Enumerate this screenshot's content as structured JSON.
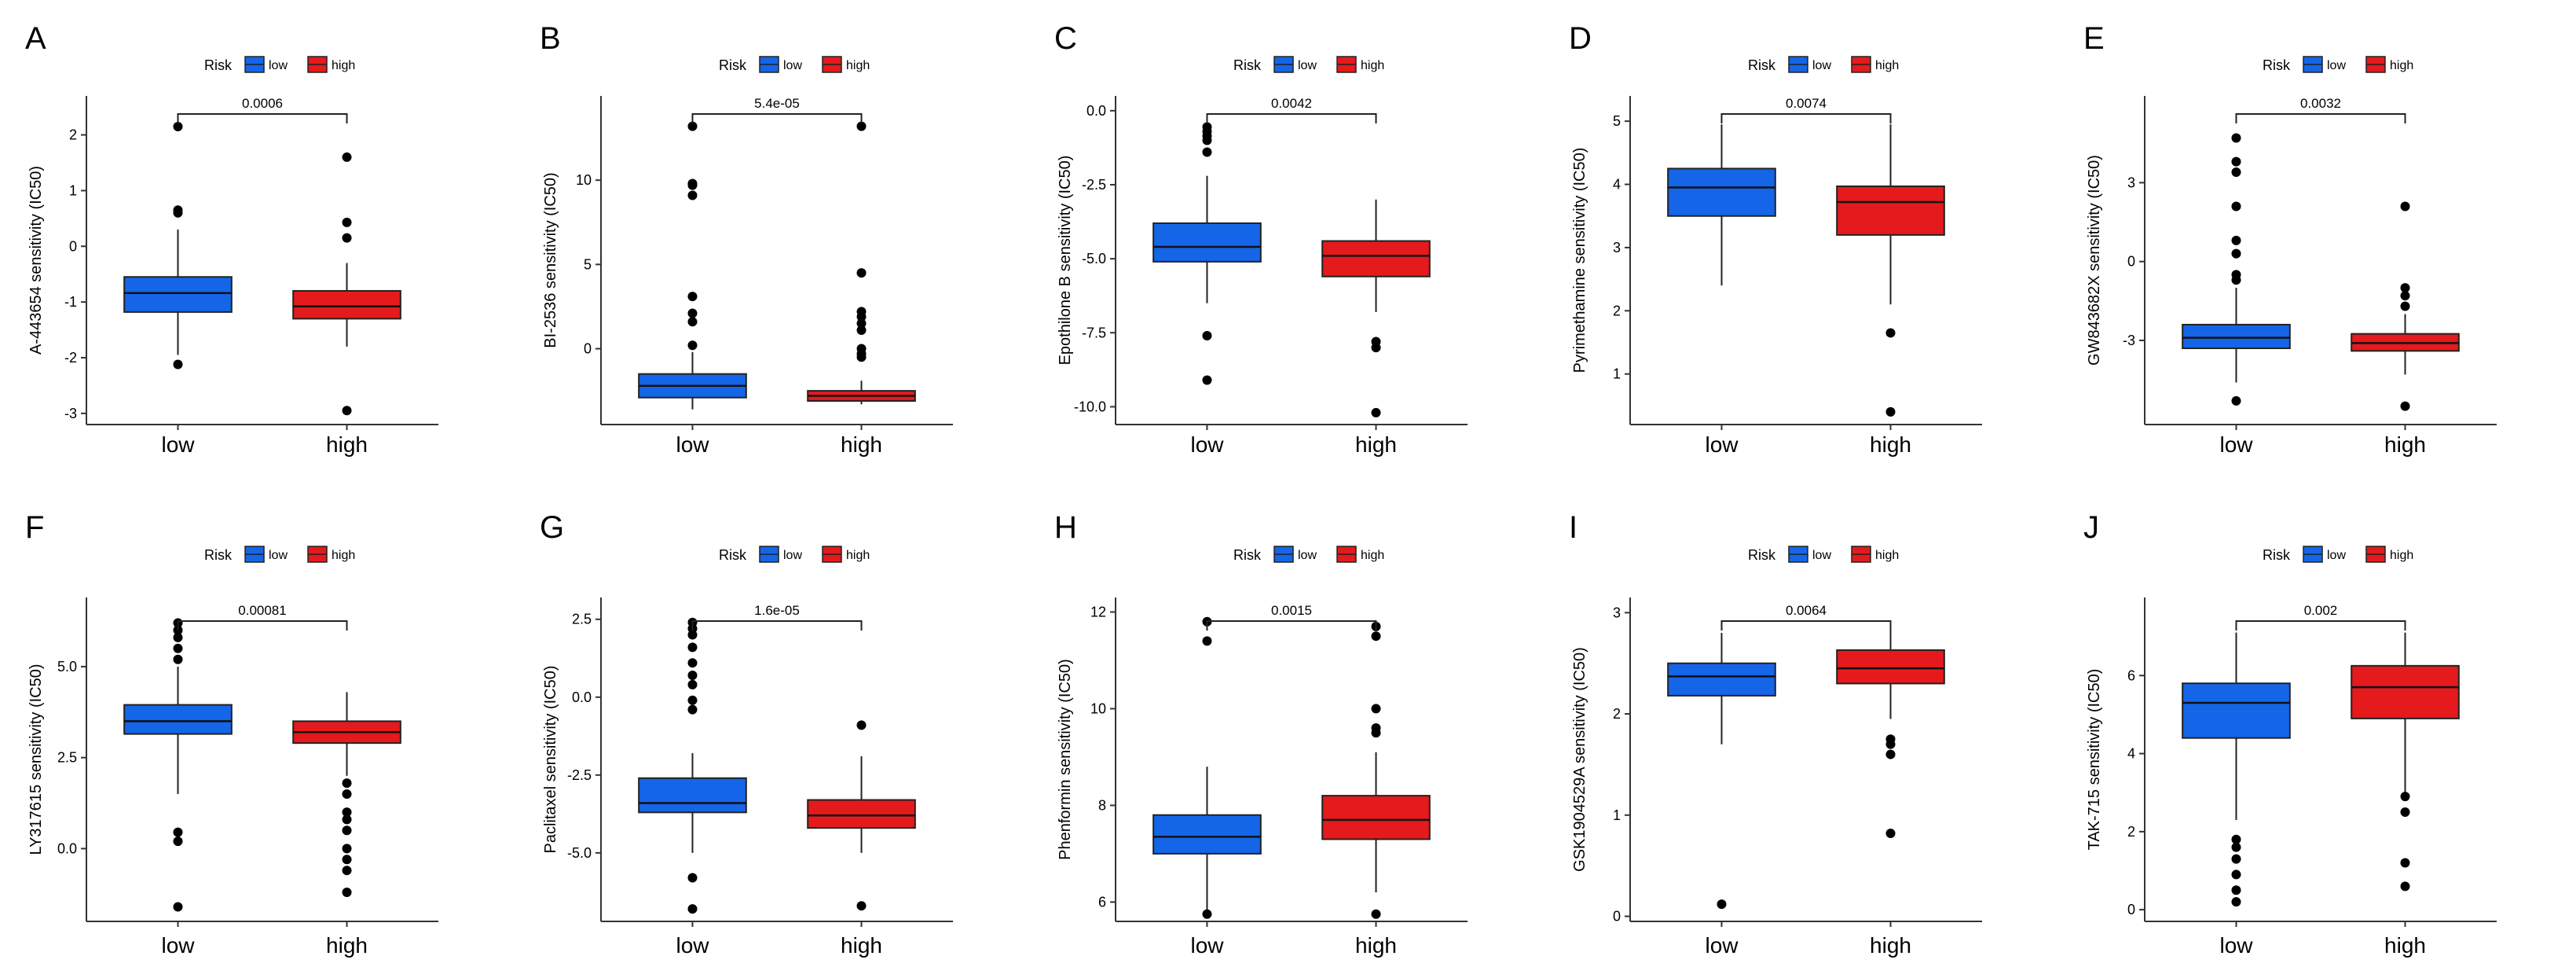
{
  "figure": {
    "legend_title": "Risk",
    "groups": [
      "low",
      "high"
    ],
    "colors": {
      "low": "#1565e8",
      "high": "#e41a1c",
      "outlier": "#000000",
      "axis": "#333333"
    }
  },
  "chart_data": [
    {
      "type": "boxplot",
      "panel": "A",
      "ylabel": "A-443654 sensitivity (IC50)",
      "categories": [
        "low",
        "high"
      ],
      "ylim": [
        -3.2,
        2.7
      ],
      "yticks": [
        -3,
        -2,
        -1,
        0,
        1,
        2
      ],
      "pvalue": "0.0006",
      "series": [
        {
          "name": "low",
          "q1": -1.18,
          "median": -0.84,
          "q3": -0.55,
          "whisker_low": -1.95,
          "whisker_high": 0.3,
          "outliers": [
            2.15,
            0.65,
            0.6,
            -2.12
          ]
        },
        {
          "name": "high",
          "q1": -1.3,
          "median": -1.08,
          "q3": -0.8,
          "whisker_low": -1.8,
          "whisker_high": -0.3,
          "outliers": [
            1.6,
            0.43,
            0.15,
            -2.95
          ]
        }
      ]
    },
    {
      "type": "boxplot",
      "panel": "B",
      "ylabel": "BI-2536 sensitivity (IC50)",
      "categories": [
        "low",
        "high"
      ],
      "ylim": [
        -4.5,
        15
      ],
      "yticks": [
        0,
        5,
        10
      ],
      "pvalue": "5.4e-05",
      "series": [
        {
          "name": "low",
          "q1": -2.9,
          "median": -2.2,
          "q3": -1.5,
          "whisker_low": -3.6,
          "whisker_high": -0.2,
          "outliers": [
            13.2,
            9.8,
            9.7,
            9.1,
            3.1,
            2.1,
            1.6,
            0.2
          ]
        },
        {
          "name": "high",
          "q1": -3.1,
          "median": -2.8,
          "q3": -2.5,
          "whisker_low": -3.3,
          "whisker_high": -1.9,
          "outliers": [
            13.2,
            4.5,
            2.2,
            1.9,
            1.5,
            1.1,
            0.0,
            -0.3,
            -0.5
          ]
        }
      ]
    },
    {
      "type": "boxplot",
      "panel": "C",
      "ylabel": "Epothilone B sensitivity (IC50)",
      "categories": [
        "low",
        "high"
      ],
      "ylim": [
        -10.6,
        0.5
      ],
      "yticks": [
        0.0,
        -2.5,
        -5.0,
        -7.5,
        -10.0
      ],
      "ytick_labels": [
        "0.0",
        "-2.5",
        "-5.0",
        "-7.5",
        "-10.0"
      ],
      "pvalue": "0.0042",
      "series": [
        {
          "name": "low",
          "q1": -5.1,
          "median": -4.6,
          "q3": -3.8,
          "whisker_low": -6.5,
          "whisker_high": -2.2,
          "outliers": [
            -0.55,
            -0.7,
            -0.85,
            -1.0,
            -1.4,
            -7.6,
            -9.1
          ]
        },
        {
          "name": "high",
          "q1": -5.6,
          "median": -4.9,
          "q3": -4.4,
          "whisker_low": -6.8,
          "whisker_high": -3.0,
          "outliers": [
            -7.8,
            -8.0,
            -10.2
          ]
        }
      ]
    },
    {
      "type": "boxplot",
      "panel": "D",
      "ylabel": "Pyrimethamine sensitivity (IC50)",
      "categories": [
        "low",
        "high"
      ],
      "ylim": [
        0.2,
        5.4
      ],
      "yticks": [
        1,
        2,
        3,
        4,
        5
      ],
      "pvalue": "0.0074",
      "series": [
        {
          "name": "low",
          "q1": 3.5,
          "median": 3.95,
          "q3": 4.25,
          "whisker_low": 2.4,
          "whisker_high": 4.95,
          "outliers": []
        },
        {
          "name": "high",
          "q1": 3.2,
          "median": 3.72,
          "q3": 3.97,
          "whisker_low": 2.1,
          "whisker_high": 4.95,
          "outliers": [
            1.65,
            0.4
          ]
        }
      ]
    },
    {
      "type": "boxplot",
      "panel": "E",
      "ylabel": "GW843682X sensitivity (IC50)",
      "categories": [
        "low",
        "high"
      ],
      "ylim": [
        -6.2,
        6.3
      ],
      "yticks": [
        -3,
        0,
        3
      ],
      "pvalue": "0.0032",
      "series": [
        {
          "name": "low",
          "q1": -3.3,
          "median": -2.9,
          "q3": -2.4,
          "whisker_low": -4.6,
          "whisker_high": -1.0,
          "outliers": [
            4.7,
            3.8,
            3.4,
            2.1,
            0.8,
            0.3,
            -0.5,
            -0.7,
            -5.3
          ]
        },
        {
          "name": "high",
          "q1": -3.4,
          "median": -3.1,
          "q3": -2.75,
          "whisker_low": -4.3,
          "whisker_high": -2.0,
          "outliers": [
            2.1,
            -1.0,
            -1.3,
            -1.7,
            -5.5
          ]
        }
      ]
    },
    {
      "type": "boxplot",
      "panel": "F",
      "ylabel": "LY317615 sensitivity (IC50)",
      "categories": [
        "low",
        "high"
      ],
      "ylim": [
        -2.0,
        6.9
      ],
      "yticks": [
        0.0,
        2.5,
        5.0
      ],
      "ytick_labels": [
        "0.0",
        "2.5",
        "5.0"
      ],
      "pvalue": "0.00081",
      "series": [
        {
          "name": "low",
          "q1": 3.15,
          "median": 3.5,
          "q3": 3.95,
          "whisker_low": 1.5,
          "whisker_high": 5.0,
          "outliers": [
            6.2,
            6.0,
            5.8,
            5.5,
            5.2,
            0.45,
            0.2,
            -1.6
          ]
        },
        {
          "name": "high",
          "q1": 2.9,
          "median": 3.2,
          "q3": 3.5,
          "whisker_low": 2.0,
          "whisker_high": 4.3,
          "outliers": [
            1.8,
            1.5,
            1.0,
            0.8,
            0.5,
            0.0,
            -0.3,
            -0.6,
            -1.2
          ]
        }
      ]
    },
    {
      "type": "boxplot",
      "panel": "G",
      "ylabel": "Paclitaxel sensitivity (IC50)",
      "categories": [
        "low",
        "high"
      ],
      "ylim": [
        -7.2,
        3.2
      ],
      "yticks": [
        2.5,
        0.0,
        -2.5,
        -5.0
      ],
      "ytick_labels": [
        "2.5",
        "0.0",
        "-2.5",
        "-5.0"
      ],
      "pvalue": "1.6e-05",
      "series": [
        {
          "name": "low",
          "q1": -3.7,
          "median": -3.4,
          "q3": -2.6,
          "whisker_low": -5.0,
          "whisker_high": -1.8,
          "outliers": [
            2.4,
            2.2,
            2.0,
            1.6,
            1.1,
            0.7,
            0.4,
            -0.1,
            -0.4,
            -5.8,
            -6.8
          ]
        },
        {
          "name": "high",
          "q1": -4.2,
          "median": -3.8,
          "q3": -3.3,
          "whisker_low": -5.0,
          "whisker_high": -1.9,
          "outliers": [
            -0.9,
            -6.7
          ]
        }
      ]
    },
    {
      "type": "boxplot",
      "panel": "H",
      "ylabel": "Phenformin sensitivity (IC50)",
      "categories": [
        "low",
        "high"
      ],
      "ylim": [
        5.6,
        12.3
      ],
      "yticks": [
        6,
        8,
        10,
        12
      ],
      "pvalue": "0.0015",
      "series": [
        {
          "name": "low",
          "q1": 7.0,
          "median": 7.35,
          "q3": 7.8,
          "whisker_low": 5.8,
          "whisker_high": 8.8,
          "outliers": [
            11.8,
            11.4,
            5.75
          ]
        },
        {
          "name": "high",
          "q1": 7.3,
          "median": 7.7,
          "q3": 8.2,
          "whisker_low": 6.2,
          "whisker_high": 9.1,
          "outliers": [
            11.7,
            11.5,
            10.0,
            9.6,
            9.5,
            5.75
          ]
        }
      ]
    },
    {
      "type": "boxplot",
      "panel": "I",
      "ylabel": "GSK1904529A sensitivity (IC50)",
      "categories": [
        "low",
        "high"
      ],
      "ylim": [
        -0.05,
        3.15
      ],
      "yticks": [
        0,
        1,
        2,
        3
      ],
      "pvalue": "0.0064",
      "series": [
        {
          "name": "low",
          "q1": 2.18,
          "median": 2.37,
          "q3": 2.5,
          "whisker_low": 1.7,
          "whisker_high": 2.8,
          "outliers": [
            0.12
          ]
        },
        {
          "name": "high",
          "q1": 2.3,
          "median": 2.45,
          "q3": 2.63,
          "whisker_low": 1.95,
          "whisker_high": 2.85,
          "outliers": [
            1.75,
            1.7,
            1.6,
            0.82
          ]
        }
      ]
    },
    {
      "type": "boxplot",
      "panel": "J",
      "ylabel": "TAK-715 sensitivity (IC50)",
      "categories": [
        "low",
        "high"
      ],
      "ylim": [
        -0.3,
        8.0
      ],
      "yticks": [
        0,
        2,
        4,
        6
      ],
      "pvalue": "0.002",
      "series": [
        {
          "name": "low",
          "q1": 4.4,
          "median": 5.3,
          "q3": 5.8,
          "whisker_low": 2.3,
          "whisker_high": 7.1,
          "outliers": [
            1.8,
            1.6,
            1.3,
            0.9,
            0.5,
            0.2
          ]
        },
        {
          "name": "high",
          "q1": 4.9,
          "median": 5.7,
          "q3": 6.25,
          "whisker_low": 3.0,
          "whisker_high": 7.1,
          "outliers": [
            2.9,
            2.5,
            1.2,
            0.6
          ]
        }
      ]
    }
  ]
}
